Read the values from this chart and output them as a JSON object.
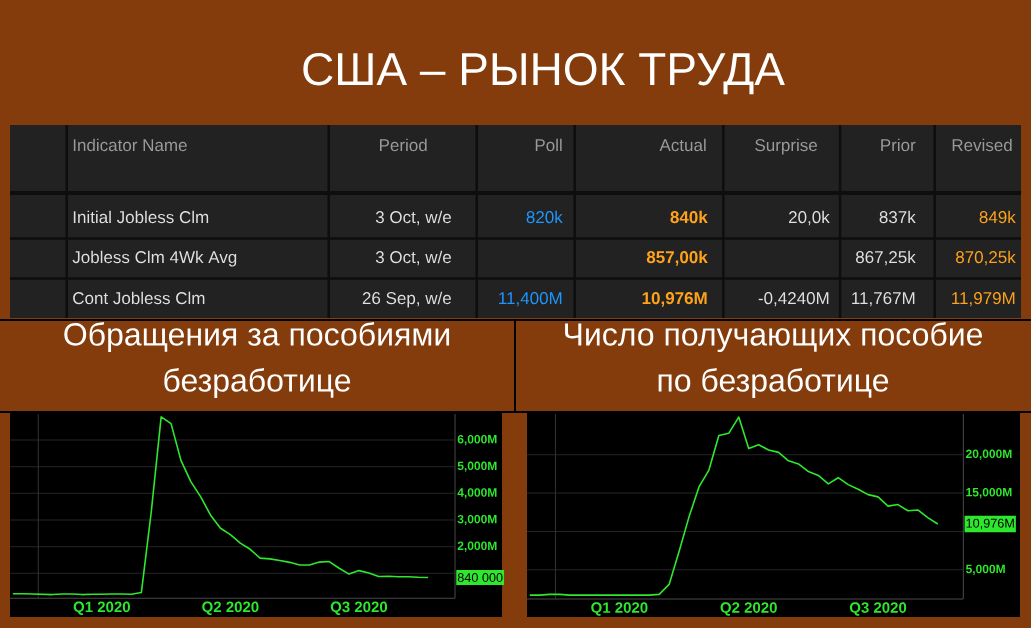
{
  "chart_data": [
    {
      "type": "other",
      "title": "США – РЫНОК ТРУДА",
      "categories": [
        "Indicator Name",
        "Period",
        "Poll",
        "Actual",
        "Surprise",
        "Prior",
        "Revised"
      ],
      "cell_labels": [
        [
          "Initial Jobless Clm",
          "3 Oct, w/e",
          "820k",
          "840k",
          "20,0k",
          "837k",
          "849k"
        ],
        [
          "Jobless Clm 4Wk Avg",
          "3 Oct, w/e",
          null,
          "857,00k",
          null,
          "867,25k",
          "870,25k"
        ],
        [
          "Cont Jobless Clm",
          "26 Sep, w/e",
          "11,400M",
          "10,976M",
          "-0,4240M",
          "11,767M",
          "11,979M"
        ]
      ]
    },
    {
      "type": "line",
      "title": "Обращения за пособиями безработице",
      "x": [
        "2019-12-14",
        "2019-12-21",
        "2019-12-28",
        "2020-01-04",
        "2020-01-11",
        "2020-01-18",
        "2020-01-25",
        "2020-02-01",
        "2020-02-08",
        "2020-02-15",
        "2020-02-22",
        "2020-02-29",
        "2020-03-07",
        "2020-03-14",
        "2020-03-21",
        "2020-03-28",
        "2020-04-04",
        "2020-04-11",
        "2020-04-18",
        "2020-04-25",
        "2020-05-02",
        "2020-05-09",
        "2020-05-16",
        "2020-05-23",
        "2020-05-30",
        "2020-06-06",
        "2020-06-13",
        "2020-06-20",
        "2020-06-27",
        "2020-07-04",
        "2020-07-11",
        "2020-07-18",
        "2020-07-25",
        "2020-08-01",
        "2020-08-08",
        "2020-08-15",
        "2020-08-22",
        "2020-08-29",
        "2020-09-05",
        "2020-09-12",
        "2020-09-19",
        "2020-09-26",
        "2020-10-03"
      ],
      "series": [
        {
          "color": "#2ee82e",
          "values": [
            230,
            230,
            220,
            210,
            200,
            220,
            220,
            200,
            210,
            210,
            220,
            220,
            210,
            280,
            3310,
            6870,
            6620,
            5240,
            4440,
            3870,
            3180,
            2690,
            2450,
            2130,
            1900,
            1570,
            1540,
            1480,
            1410,
            1310,
            1310,
            1420,
            1440,
            1190,
            970,
            1100,
            1010,
            880,
            890,
            870,
            870,
            850,
            840
          ]
        }
      ],
      "xlim": [
        "2019-12-12",
        "2020-10-22"
      ],
      "ylim": [
        60,
        6980
      ],
      "xticks": [
        {
          "value": "2020-02-15",
          "label": "Q1 2020"
        },
        {
          "value": "2020-05-16",
          "label": "Q2 2020"
        },
        {
          "value": "2020-08-15",
          "label": "Q3 2020"
        }
      ],
      "yticks": [
        {
          "value": 1000,
          "label": null
        },
        {
          "value": 2000,
          "label": "2,000M"
        },
        {
          "value": 3000,
          "label": "3,000M"
        },
        {
          "value": 4000,
          "label": "4,000M"
        },
        {
          "value": 5000,
          "label": "5,000M"
        },
        {
          "value": 6000,
          "label": "6,000M"
        }
      ],
      "grid": "y",
      "ref_lines": [
        {
          "axis": "x",
          "value": "2020-01-01",
          "color": "#333333"
        }
      ],
      "annotations": [
        "840 000"
      ]
    },
    {
      "type": "line",
      "title": "Число получающих пособие по безработице",
      "x": [
        "2019-12-14",
        "2019-12-21",
        "2019-12-28",
        "2020-01-04",
        "2020-01-11",
        "2020-01-18",
        "2020-01-25",
        "2020-02-01",
        "2020-02-08",
        "2020-02-15",
        "2020-02-22",
        "2020-02-29",
        "2020-03-07",
        "2020-03-14",
        "2020-03-21",
        "2020-03-28",
        "2020-04-04",
        "2020-04-11",
        "2020-04-18",
        "2020-04-25",
        "2020-05-02",
        "2020-05-09",
        "2020-05-16",
        "2020-05-23",
        "2020-05-30",
        "2020-06-06",
        "2020-06-13",
        "2020-06-20",
        "2020-06-27",
        "2020-07-04",
        "2020-07-11",
        "2020-07-18",
        "2020-07-25",
        "2020-08-01",
        "2020-08-08",
        "2020-08-15",
        "2020-08-22",
        "2020-08-29",
        "2020-09-05",
        "2020-09-12",
        "2020-09-19",
        "2020-09-26"
      ],
      "series": [
        {
          "color": "#2ee82e",
          "values": [
            1700,
            1700,
            1800,
            1800,
            1700,
            1700,
            1700,
            1700,
            1700,
            1700,
            1700,
            1700,
            1700,
            1800,
            3100,
            7400,
            11900,
            15800,
            18000,
            22500,
            22800,
            24900,
            20800,
            21300,
            20600,
            20300,
            19200,
            18800,
            17800,
            17300,
            16200,
            17000,
            16100,
            15500,
            14800,
            14500,
            13300,
            13500,
            12700,
            12800,
            11800,
            10976
          ]
        }
      ],
      "xlim": [
        "2019-12-12",
        "2020-10-14"
      ],
      "ylim": [
        1200,
        25300
      ],
      "xticks": [
        {
          "value": "2020-02-15",
          "label": "Q1 2020"
        },
        {
          "value": "2020-05-16",
          "label": "Q2 2020"
        },
        {
          "value": "2020-08-15",
          "label": "Q3 2020"
        }
      ],
      "yticks": [
        {
          "value": 5000,
          "label": "5,000M"
        },
        {
          "value": 10000,
          "label": null
        },
        {
          "value": 15000,
          "label": "15,000M"
        },
        {
          "value": 20000,
          "label": "20,000M"
        }
      ],
      "grid": "y",
      "ref_lines": [
        {
          "axis": "x",
          "value": "2020-01-01",
          "color": "#333333"
        }
      ],
      "annotations": [
        "10,976M"
      ]
    }
  ]
}
